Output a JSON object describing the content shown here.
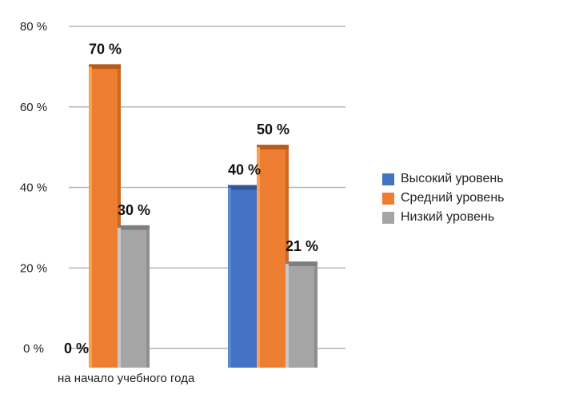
{
  "chart_data": {
    "type": "bar",
    "title": "",
    "xlabel": "",
    "ylabel": "",
    "ylim": [
      0,
      80
    ],
    "y_ticks": [
      {
        "value": 0,
        "label": "0 %"
      },
      {
        "value": 20,
        "label": "20 %"
      },
      {
        "value": 40,
        "label": "40 %"
      },
      {
        "value": 60,
        "label": "60 %"
      },
      {
        "value": 80,
        "label": "80 %"
      }
    ],
    "grid": true,
    "legend_position": "right",
    "categories": [
      "на начало учебного года",
      ""
    ],
    "series": [
      {
        "name": "Высокий уровень",
        "color": "#4472C4",
        "values": [
          0,
          40
        ],
        "data_labels": [
          "0 %",
          "40 %"
        ]
      },
      {
        "name": "Средний уровень",
        "color": "#ED7D31",
        "values": [
          70,
          50
        ],
        "data_labels": [
          "70 %",
          "50 %"
        ]
      },
      {
        "name": "Низкий уровень",
        "color": "#A5A5A5",
        "values": [
          30,
          21
        ],
        "data_labels": [
          "30 %",
          "21 %"
        ]
      }
    ]
  }
}
